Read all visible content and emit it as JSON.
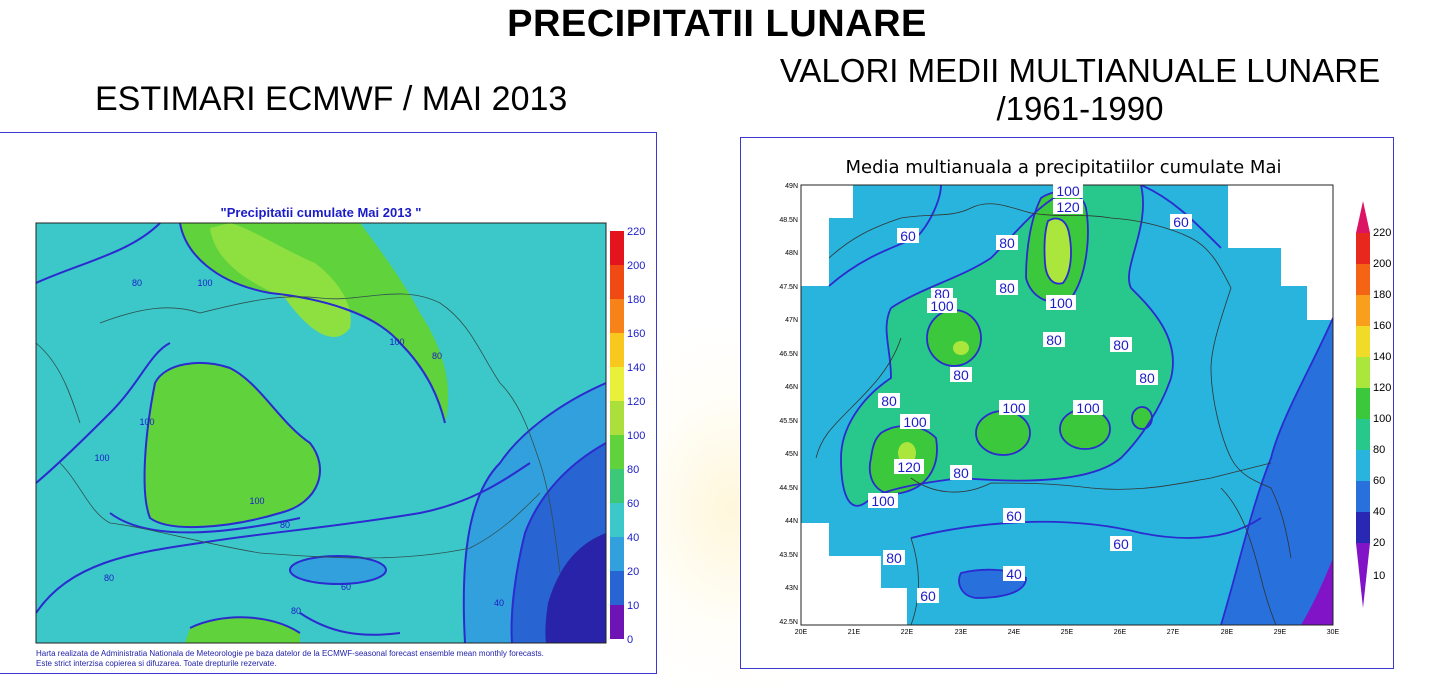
{
  "page": {
    "title": "PRECIPITATII LUNARE",
    "left_subtitle": "ESTIMARI ECMWF / MAI 2013",
    "right_subtitle_line1": "VALORI MEDII MULTIANUALE LUNARE",
    "right_subtitle_line2": "/1961-1990"
  },
  "left_map": {
    "title": "\"Precipitatii cumulate Mai 2013 \"",
    "footnote_line1": "Harta realizata de Administratia Nationala de Meteorologie pe baza datelor de la ECMWF-seasonal forecast ensemble mean monthly forecasts.",
    "footnote_line2": "Este strict interzisa copierea si difuzarea. Toate drepturile rezervate.",
    "colorbar_ticks": [
      "220",
      "200",
      "180",
      "160",
      "140",
      "120",
      "100",
      "80",
      "60",
      "40",
      "20",
      "10",
      "0"
    ],
    "colorbar_colors": [
      "#e4141e",
      "#f04a14",
      "#f8821a",
      "#f8c81e",
      "#e8f03c",
      "#aadf3c",
      "#5fd23c",
      "#3cc878",
      "#3cc8c8",
      "#32a0dc",
      "#2864d2",
      "#2823a8",
      "#6e14b4"
    ],
    "contour_labels": [
      "80",
      "100",
      "100",
      "80",
      "100",
      "100",
      "100",
      "80",
      "80",
      "80",
      "60",
      "40",
      "80"
    ]
  },
  "right_map": {
    "title": "Media multianuala a precipitatiilor cumulate Mai",
    "lat_ticks": [
      "49N",
      "48.5N",
      "48N",
      "47.5N",
      "47N",
      "46.5N",
      "46N",
      "45.5N",
      "45N",
      "44.5N",
      "44N",
      "43.5N",
      "43N",
      "42.5N"
    ],
    "lon_ticks": [
      "20E",
      "21E",
      "22E",
      "23E",
      "24E",
      "25E",
      "26E",
      "27E",
      "28E",
      "29E",
      "30E"
    ],
    "colorbar_ticks": [
      "220",
      "200",
      "180",
      "160",
      "140",
      "120",
      "100",
      "80",
      "60",
      "40",
      "20",
      "10"
    ],
    "colorbar_colors": [
      "#dc1464",
      "#e8281e",
      "#f46414",
      "#f8a01e",
      "#f0dc28",
      "#aae63c",
      "#3cc83c",
      "#28c88c",
      "#28b4dc",
      "#2870dc",
      "#2828b4",
      "#8214c8"
    ],
    "contour_labels": [
      "100",
      "120",
      "60",
      "80",
      "60",
      "80",
      "100",
      "80",
      "100",
      "80",
      "80",
      "80",
      "80",
      "100",
      "100",
      "100",
      "120",
      "80",
      "80",
      "100",
      "60",
      "60",
      "80",
      "40",
      "60"
    ]
  }
}
